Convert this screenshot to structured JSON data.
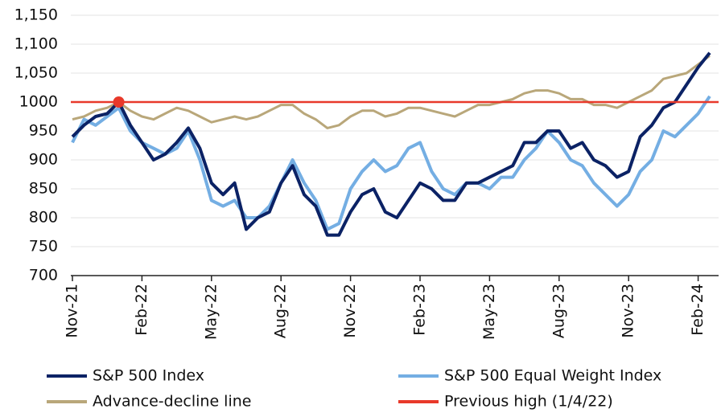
{
  "chart_data": {
    "type": "line",
    "categories": [
      "Nov-21",
      null,
      null,
      null,
      null,
      null,
      "Feb-22",
      null,
      null,
      null,
      null,
      null,
      "May-22",
      null,
      null,
      null,
      null,
      null,
      "Aug-22",
      null,
      null,
      null,
      null,
      null,
      "Nov-22",
      null,
      null,
      null,
      null,
      null,
      "Feb-23",
      null,
      null,
      null,
      null,
      null,
      "May-23",
      null,
      null,
      null,
      null,
      null,
      "Aug-23",
      null,
      null,
      null,
      null,
      null,
      "Nov-23",
      null,
      null,
      null,
      null,
      null,
      "Feb-24",
      null
    ],
    "series": [
      {
        "name": "S&P 500 Index",
        "color": "#0b2265",
        "values": [
          940,
          960,
          975,
          980,
          1000,
          960,
          930,
          900,
          910,
          930,
          955,
          920,
          860,
          840,
          860,
          780,
          800,
          810,
          860,
          890,
          840,
          820,
          770,
          770,
          810,
          840,
          850,
          810,
          800,
          830,
          860,
          850,
          830,
          830,
          860,
          860,
          870,
          880,
          890,
          930,
          930,
          950,
          950,
          920,
          930,
          900,
          890,
          870,
          880,
          940,
          960,
          990,
          1000,
          1030,
          1060,
          1085
        ]
      },
      {
        "name": "S&P 500 Equal Weight Index",
        "color": "#74aee3",
        "values": [
          930,
          970,
          960,
          975,
          990,
          950,
          930,
          920,
          910,
          920,
          950,
          900,
          830,
          820,
          830,
          800,
          800,
          820,
          860,
          900,
          860,
          830,
          780,
          790,
          850,
          880,
          900,
          880,
          890,
          920,
          930,
          880,
          850,
          840,
          860,
          860,
          850,
          870,
          870,
          900,
          920,
          950,
          930,
          900,
          890,
          860,
          840,
          820,
          840,
          880,
          900,
          950,
          940,
          960,
          980,
          1010
        ]
      },
      {
        "name": "Advance-decline line",
        "color": "#b9a77a",
        "values": [
          970,
          975,
          985,
          990,
          1000,
          985,
          975,
          970,
          980,
          990,
          985,
          975,
          965,
          970,
          975,
          970,
          975,
          985,
          995,
          995,
          980,
          970,
          955,
          960,
          975,
          985,
          985,
          975,
          980,
          990,
          990,
          985,
          980,
          975,
          985,
          995,
          995,
          1000,
          1005,
          1015,
          1020,
          1020,
          1015,
          1005,
          1005,
          995,
          995,
          990,
          1000,
          1010,
          1020,
          1040,
          1045,
          1050,
          1065,
          1080
        ]
      }
    ],
    "reference_line": {
      "name": "Previous high (1/4/22)",
      "color": "#e8392a",
      "value": 1000
    },
    "ylim": [
      700,
      1150
    ],
    "yticks": [
      700,
      750,
      800,
      850,
      900,
      950,
      1000,
      {
        "value": 1050,
        "label": "1,050"
      },
      {
        "value": 1100,
        "label": "1,100"
      },
      {
        "value": 1150,
        "label": "1,150"
      }
    ],
    "grid": true
  }
}
